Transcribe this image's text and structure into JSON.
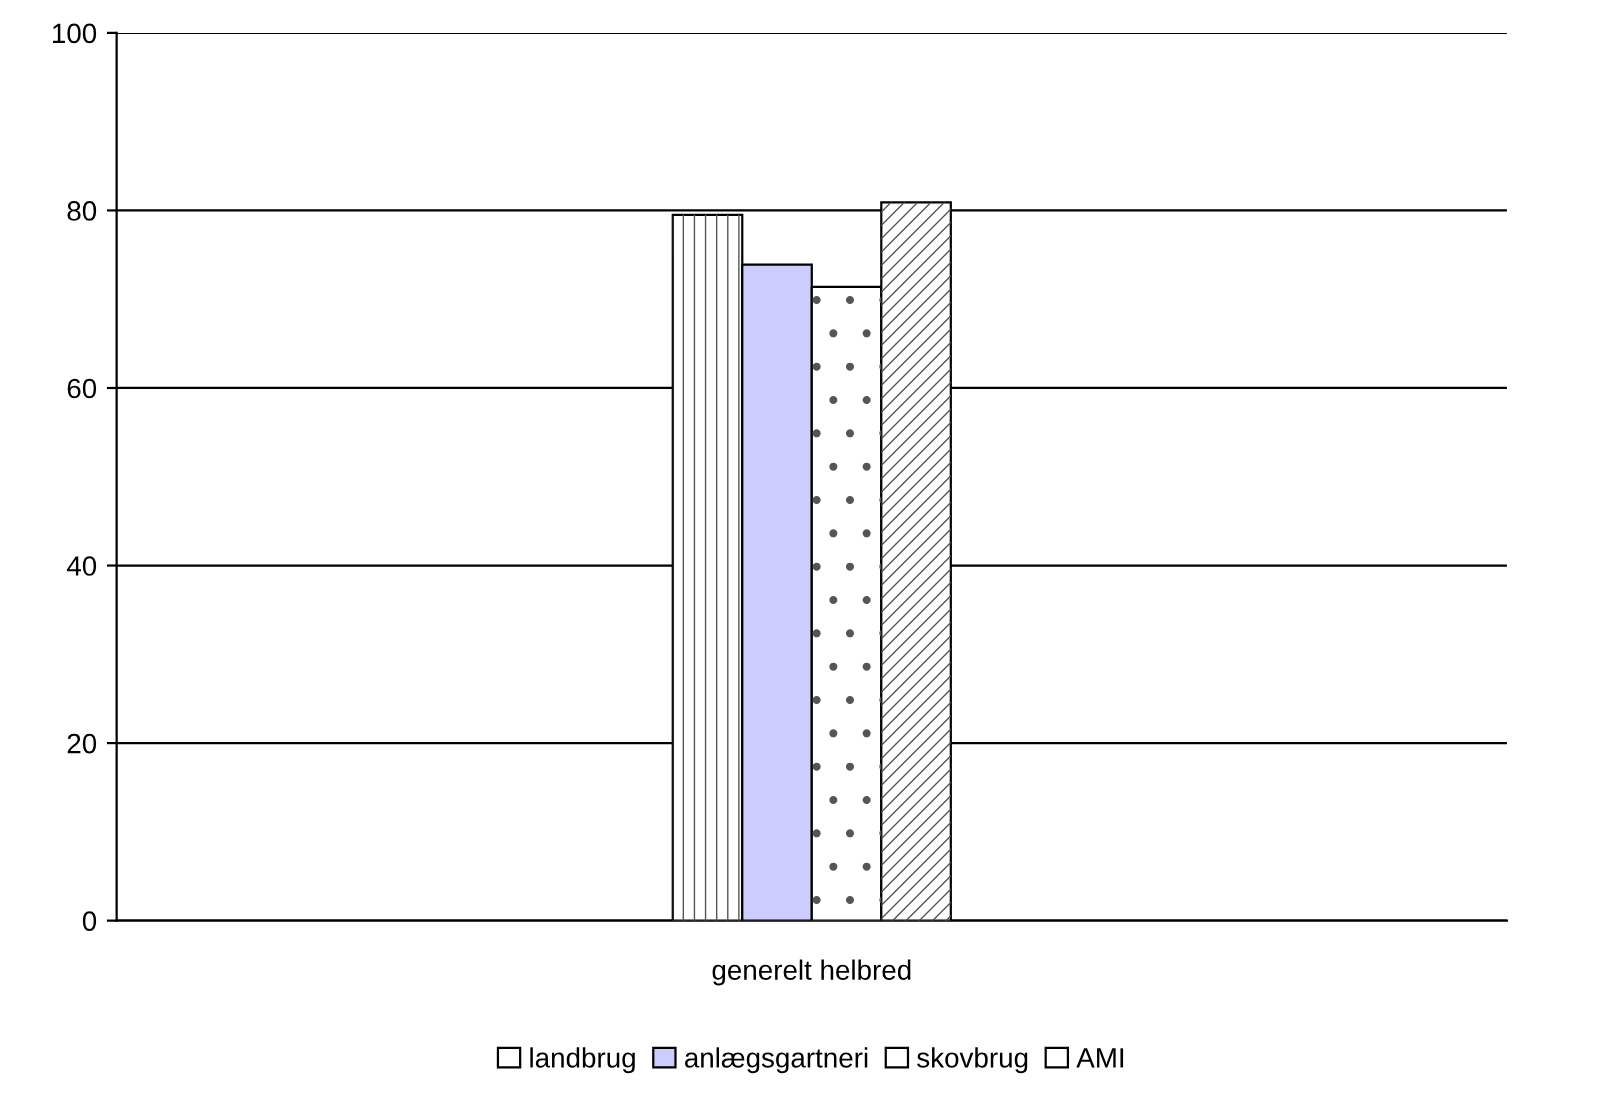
{
  "chart_data": {
    "type": "bar",
    "categories": [
      "generelt helbred"
    ],
    "series": [
      {
        "name": "landbrug",
        "color": "#ffffff",
        "values": [
          79.5
        ]
      },
      {
        "name": "anlægsgartneri",
        "color": "#ccccff",
        "values": [
          73.9
        ]
      },
      {
        "name": "skovbrug",
        "color": "#ffffff",
        "values": [
          71.4
        ]
      },
      {
        "name": "AMI",
        "color": "#ffffff",
        "values": [
          80.9
        ]
      }
    ],
    "ylim": [
      0,
      100
    ],
    "yticks": [
      0,
      20,
      40,
      60,
      80,
      100
    ],
    "grid": "y",
    "legend": "bottom"
  }
}
